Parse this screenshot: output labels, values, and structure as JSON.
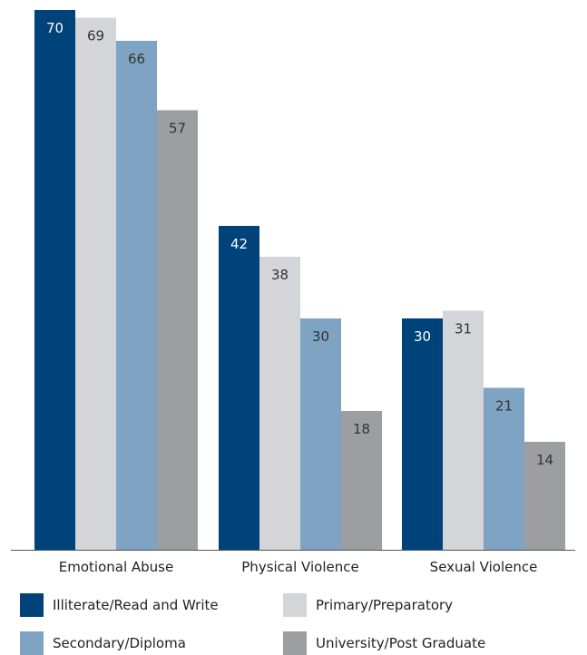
{
  "chart_data": {
    "type": "bar",
    "categories": [
      "Emotional Abuse",
      "Physical Violence",
      "Sexual Violence"
    ],
    "series": [
      {
        "name": "Illiterate/Read and Write",
        "color": "#00427a",
        "label_color": "#ffffff",
        "values": [
          70,
          42,
          30
        ]
      },
      {
        "name": "Primary/Preparatory",
        "color": "#d4d5d8",
        "label_color": "#333333",
        "values": [
          69,
          38,
          31
        ]
      },
      {
        "name": "Secondary/Diploma",
        "color": "#7fa3c2",
        "label_color": "#333333",
        "values": [
          66,
          30,
          21
        ]
      },
      {
        "name": "University/Post Graduate",
        "color": "#9d9ea2",
        "label_color": "#333333",
        "values": [
          57,
          18,
          14
        ]
      }
    ],
    "ylim": [
      0,
      70
    ],
    "grid": false,
    "legend_position": "bottom"
  }
}
